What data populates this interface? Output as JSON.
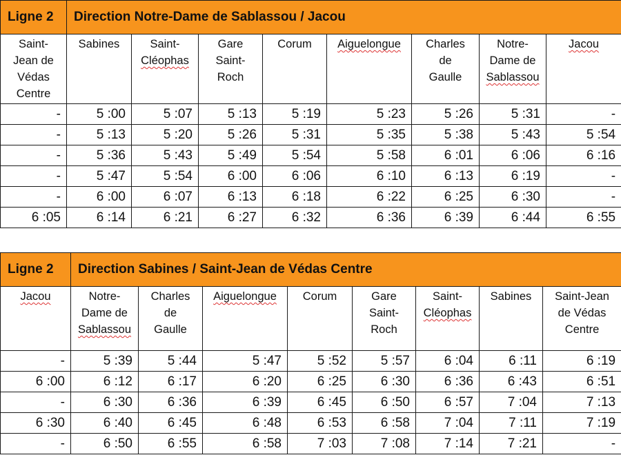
{
  "tables": [
    {
      "line": "Ligne 2",
      "direction": "Direction Notre-Dame de Sablassou / Jacou",
      "stations": [
        {
          "lines": [
            "Saint-",
            "Jean de",
            "Védas",
            "Centre"
          ],
          "squiggle": [
            false,
            false,
            false,
            false
          ]
        },
        {
          "lines": [
            "Sabines"
          ],
          "squiggle": [
            false
          ]
        },
        {
          "lines": [
            "Saint-",
            "Cléophas"
          ],
          "squiggle": [
            false,
            true
          ]
        },
        {
          "lines": [
            "Gare",
            "Saint-",
            "Roch"
          ],
          "squiggle": [
            false,
            false,
            false
          ]
        },
        {
          "lines": [
            "Corum"
          ],
          "squiggle": [
            false
          ]
        },
        {
          "lines": [
            "Aiguelongue"
          ],
          "squiggle": [
            true
          ]
        },
        {
          "lines": [
            "Charles",
            "de",
            "Gaulle"
          ],
          "squiggle": [
            false,
            false,
            false
          ]
        },
        {
          "lines": [
            "Notre-",
            "Dame de",
            "Sablassou"
          ],
          "squiggle": [
            false,
            false,
            true
          ]
        },
        {
          "lines": [
            "Jacou"
          ],
          "squiggle": [
            true
          ]
        }
      ],
      "rows": [
        [
          "-",
          "5 :00",
          "5 :07",
          "5 :13",
          "5 :19",
          "5 :23",
          "5 :26",
          "5 :31",
          "-"
        ],
        [
          "-",
          "5 :13",
          "5 :20",
          "5 :26",
          "5 :31",
          "5 :35",
          "5 :38",
          "5 :43",
          "5 :54"
        ],
        [
          "-",
          "5 :36",
          "5 :43",
          "5 :49",
          "5 :54",
          "5 :58",
          "6 :01",
          "6 :06",
          "6 :16"
        ],
        [
          "-",
          "5 :47",
          "5 :54",
          "6 :00",
          "6 :06",
          "6 :10",
          "6 :13",
          "6 :19",
          "-"
        ],
        [
          "-",
          "6 :00",
          "6 :07",
          "6 :13",
          "6 :18",
          "6 :22",
          "6 :25",
          "6 :30",
          "-"
        ],
        [
          "6 :05",
          "6 :14",
          "6 :21",
          "6 :27",
          "6 :32",
          "6 :36",
          "6 :39",
          "6 :44",
          "6 :55"
        ]
      ]
    },
    {
      "line": "Ligne 2",
      "direction": "Direction Sabines / Saint-Jean de Védas Centre",
      "stations": [
        {
          "lines": [
            "Jacou"
          ],
          "squiggle": [
            true
          ]
        },
        {
          "lines": [
            "Notre-",
            "Dame de",
            "Sablassou"
          ],
          "squiggle": [
            false,
            false,
            true
          ]
        },
        {
          "lines": [
            "Charles",
            "de",
            "Gaulle"
          ],
          "squiggle": [
            false,
            false,
            false
          ]
        },
        {
          "lines": [
            "Aiguelongue"
          ],
          "squiggle": [
            true
          ]
        },
        {
          "lines": [
            "Corum"
          ],
          "squiggle": [
            false
          ]
        },
        {
          "lines": [
            "Gare",
            "Saint-",
            "Roch"
          ],
          "squiggle": [
            false,
            false,
            false
          ]
        },
        {
          "lines": [
            "Saint-",
            "Cléophas"
          ],
          "squiggle": [
            false,
            true
          ]
        },
        {
          "lines": [
            "Sabines"
          ],
          "squiggle": [
            false
          ]
        },
        {
          "lines": [
            "Saint-Jean",
            "de Védas",
            "Centre"
          ],
          "squiggle": [
            false,
            false,
            false
          ]
        }
      ],
      "rows": [
        [
          "-",
          "5 :39",
          "5 :44",
          "5 :47",
          "5 :52",
          "5 :57",
          "6 :04",
          "6 :11",
          "6 :19"
        ],
        [
          "6 :00",
          "6 :12",
          "6 :17",
          "6 :20",
          "6 :25",
          "6 :30",
          "6 :36",
          "6 :43",
          "6 :51"
        ],
        [
          "-",
          "6 :30",
          "6 :36",
          "6 :39",
          "6 :45",
          "6 :50",
          "6 :57",
          "7 :04",
          "7 :13"
        ],
        [
          "6 :30",
          "6 :40",
          "6 :45",
          "6 :48",
          "6 :53",
          "6 :58",
          "7 :04",
          "7 :11",
          "7 :19"
        ],
        [
          "-",
          "6 :50",
          "6 :55",
          "6 :58",
          "7 :03",
          "7 :08",
          "7 :14",
          "7 :21",
          "-"
        ]
      ]
    }
  ],
  "colors": {
    "header_bg": "#f7941d",
    "border": "#1a1a1a",
    "spellcheck": "#d33333"
  }
}
